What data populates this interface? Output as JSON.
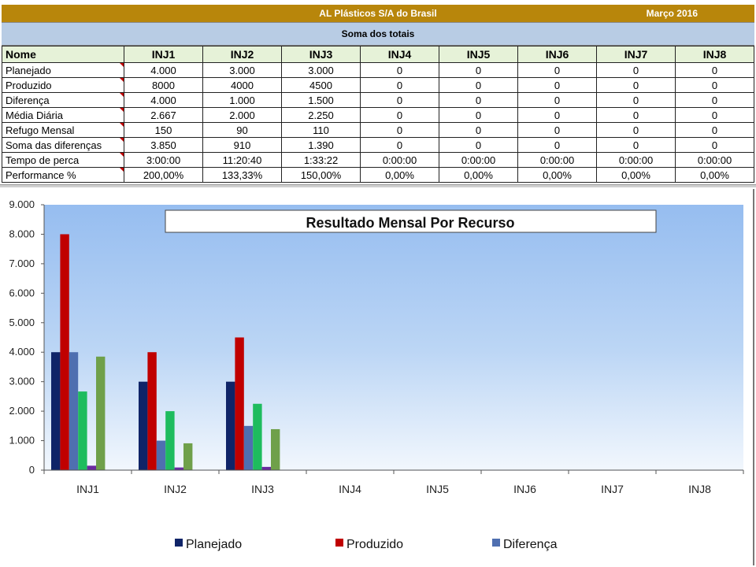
{
  "header": {
    "company": "AL Plásticos S/A do Brasil",
    "period": "Março 2016",
    "subtitle": "Soma dos totais"
  },
  "table": {
    "name_header": "Nome",
    "columns": [
      "INJ1",
      "INJ2",
      "INJ3",
      "INJ4",
      "INJ5",
      "INJ6",
      "INJ7",
      "INJ8"
    ],
    "rows": [
      {
        "label": "Planejado",
        "values": [
          "4.000",
          "3.000",
          "3.000",
          "0",
          "0",
          "0",
          "0",
          "0"
        ]
      },
      {
        "label": "Produzido",
        "values": [
          "8000",
          "4000",
          "4500",
          "0",
          "0",
          "0",
          "0",
          "0"
        ]
      },
      {
        "label": "Diferença",
        "values": [
          "4.000",
          "1.000",
          "1.500",
          "0",
          "0",
          "0",
          "0",
          "0"
        ]
      },
      {
        "label": "Média Diária",
        "values": [
          "2.667",
          "2.000",
          "2.250",
          "0",
          "0",
          "0",
          "0",
          "0"
        ]
      },
      {
        "label": "Refugo Mensal",
        "values": [
          "150",
          "90",
          "110",
          "0",
          "0",
          "0",
          "0",
          "0"
        ]
      },
      {
        "label": "Soma das diferenças",
        "values": [
          "3.850",
          "910",
          "1.390",
          "0",
          "0",
          "0",
          "0",
          "0"
        ]
      },
      {
        "label": "Tempo de perca",
        "values": [
          "3:00:00",
          "11:20:40",
          "1:33:22",
          "0:00:00",
          "0:00:00",
          "0:00:00",
          "0:00:00",
          "0:00:00"
        ]
      },
      {
        "label": "Performance %",
        "values": [
          "200,00%",
          "133,33%",
          "150,00%",
          "0,00%",
          "0,00%",
          "0,00%",
          "0,00%",
          "0,00%"
        ]
      }
    ]
  },
  "chart_data": {
    "type": "bar",
    "title": "Resultado Mensal Por Recurso",
    "xlabel": "",
    "ylabel": "",
    "categories": [
      "INJ1",
      "INJ2",
      "INJ3",
      "INJ4",
      "INJ5",
      "INJ6",
      "INJ7",
      "INJ8"
    ],
    "ylim": [
      0,
      9000
    ],
    "yticks": [
      0,
      1000,
      2000,
      3000,
      4000,
      5000,
      6000,
      7000,
      8000,
      9000
    ],
    "ytick_labels": [
      "0",
      "1.000",
      "2.000",
      "3.000",
      "4.000",
      "5.000",
      "6.000",
      "7.000",
      "8.000",
      "9.000"
    ],
    "grid": false,
    "legend_position": "bottom",
    "series": [
      {
        "name": "Planejado",
        "color": "#0f2468",
        "values": [
          4000,
          3000,
          3000,
          0,
          0,
          0,
          0,
          0
        ]
      },
      {
        "name": "Produzido",
        "color": "#c00000",
        "values": [
          8000,
          4000,
          4500,
          0,
          0,
          0,
          0,
          0
        ]
      },
      {
        "name": "Diferença",
        "color": "#4f6fb0",
        "values": [
          4000,
          1000,
          1500,
          0,
          0,
          0,
          0,
          0
        ]
      },
      {
        "color": "#1ebc5e",
        "values": [
          2667,
          2000,
          2250,
          0,
          0,
          0,
          0,
          0
        ]
      },
      {
        "color": "#6a2aa0",
        "values": [
          150,
          90,
          110,
          0,
          0,
          0,
          0,
          0
        ]
      },
      {
        "color": "#6fa04a",
        "values": [
          3850,
          910,
          1390,
          0,
          0,
          0,
          0,
          0
        ]
      },
      {
        "color": "#d08a8a",
        "values": [
          0,
          0,
          0,
          0,
          0,
          0,
          0,
          0
        ]
      }
    ],
    "legend_entries": [
      "Planejado",
      "Produzido",
      "Diferença"
    ]
  }
}
